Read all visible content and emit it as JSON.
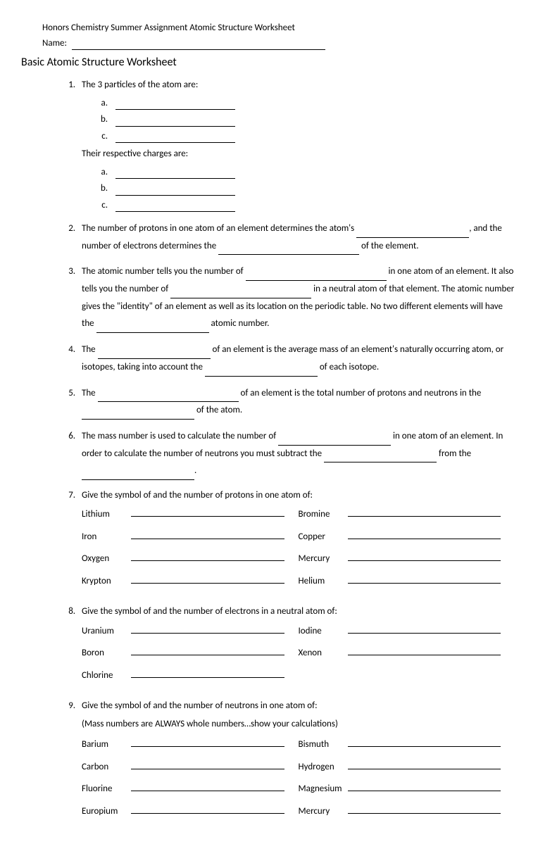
{
  "header": {
    "course": "Honors Chemistry Summer Assignment Atomic Structure Worksheet",
    "name_label": "Name:"
  },
  "title": "Basic Atomic Structure Worksheet",
  "q1": {
    "prompt": "The 3 particles of the atom are:",
    "sub2": "Their respective charges are:"
  },
  "q2": {
    "t1": "The number of protons in one atom of an element determines the atom's ",
    "t2": ", and the number of electrons determines the ",
    "t3": " of the element."
  },
  "q3": {
    "t1": "The atomic number tells you the number of ",
    "t2": " in one atom of an element.  It also tells you the number of ",
    "t3": " in a neutral atom of that element.  The atomic number gives the \"identity\" of an element as well as its location on the periodic table.  No two different elements will have the ",
    "t4": " atomic number."
  },
  "q4": {
    "t1": "The ",
    "t2": " of an element is the average mass of an element's naturally occurring atom, or isotopes, taking into account the ",
    "t3": " of each isotope."
  },
  "q5": {
    "t1": "The ",
    "t2": " of an element is the total number of protons and neutrons in the ",
    "t3": " of the atom."
  },
  "q6": {
    "t1": "The mass number is used to calculate the number of ",
    "t2": " in one atom of an element.  In order to calculate the number of neutrons you must subtract the ",
    "t3": " from the ",
    "t4": "."
  },
  "q7": {
    "prompt": "Give the symbol of and the number of protons in one atom of:",
    "left": [
      "Lithium",
      "Iron",
      "Oxygen",
      "Krypton"
    ],
    "right": [
      "Bromine",
      "Copper",
      "Mercury",
      "Helium"
    ]
  },
  "q8": {
    "prompt": "Give the symbol of and the number of electrons in a neutral atom of:",
    "left": [
      "Uranium",
      "Boron",
      "Chlorine"
    ],
    "right": [
      "Iodine",
      "Xenon"
    ]
  },
  "q9": {
    "prompt": "Give the symbol of and the number of neutrons in one atom of:",
    "note": "(Mass numbers are ALWAYS whole numbers…show your calculations)",
    "left": [
      "Barium",
      "Carbon",
      "Fluorine",
      "Europium"
    ],
    "right": [
      "Bismuth",
      "Hydrogen",
      "Magnesium",
      "Mercury"
    ]
  }
}
